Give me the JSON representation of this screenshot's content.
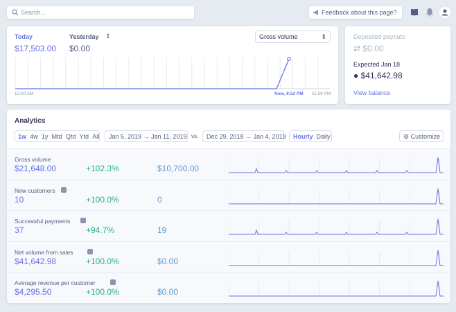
{
  "search": {
    "placeholder": "Search..."
  },
  "topbar": {
    "feedback": "Feedback about this page?"
  },
  "summary": {
    "today_label": "Today",
    "today_value": "$17,503.00",
    "yesterday_label": "Yesterday",
    "yesterday_value": "$0.00",
    "metric_select": "Gross volume",
    "axis": {
      "start": "12:00 AM",
      "now": "Now, 8:52 PM",
      "end": "11:59 PM"
    }
  },
  "payouts": {
    "deposited_label": "Deposited payouts",
    "deposited_value": "$0.00",
    "expected_label": "Expected Jan 18",
    "expected_value": "$41,642.98",
    "link": "View balance"
  },
  "analytics": {
    "title": "Analytics",
    "ranges": [
      "1w",
      "4w",
      "1y",
      "Mtd",
      "Qtd",
      "Ytd",
      "All"
    ],
    "date_range": "Jan 5, 2019 → Jan 11, 2019",
    "vs": "vs.",
    "compare_range": "Dec 29, 2018 → Jan 4, 2019",
    "granularity": [
      "Hourly",
      "Daily"
    ],
    "customize": "Customize",
    "rows": [
      {
        "label": "Gross volume",
        "value": "$21,648.00",
        "change": "+102.3%",
        "previous": "$10,700.00"
      },
      {
        "label": "New customers",
        "value": "10",
        "change": "+100.0%",
        "previous": "0"
      },
      {
        "label": "Successful payments",
        "value": "37",
        "change": "+94.7%",
        "previous": "19"
      },
      {
        "label": "Net volume from sales",
        "value": "$41,642.98",
        "change": "+100.0%",
        "previous": "$0.00"
      },
      {
        "label": "Average revenue per customer",
        "value": "$4,295.50",
        "change": "+100.0%",
        "previous": "$0.00"
      }
    ]
  }
}
